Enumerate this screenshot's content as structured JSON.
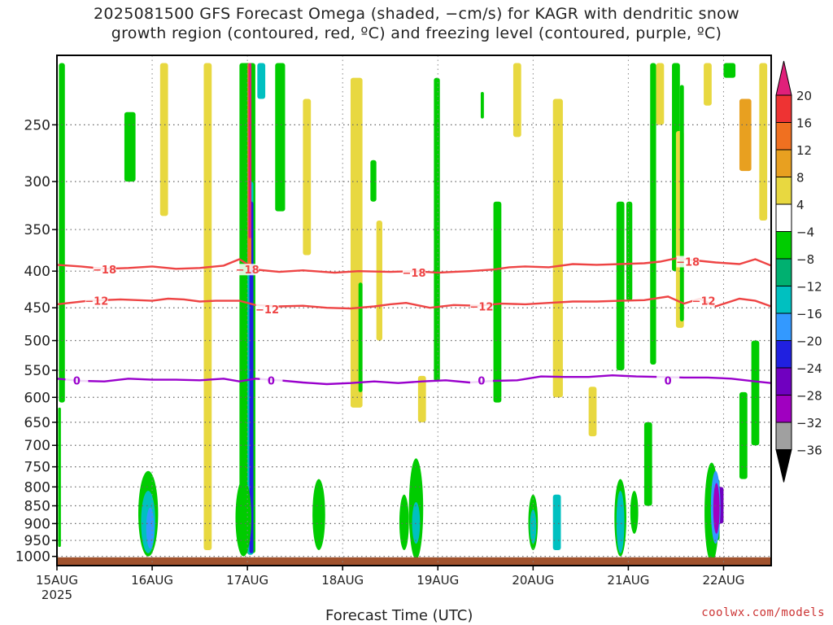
{
  "title_line1": "2025081500 GFS Forecast Omega (shaded, −cm/s) for KAGR with dendritic snow",
  "title_line2": "growth region (contoured, red, ºC) and freezing level (contoured, purple, ºC)",
  "credit": "coolwx.com/models",
  "colors": {
    "frame": "#000000",
    "grid": "#888888",
    "red_contour": "#ee4444",
    "purple_contour": "#9900cc",
    "ground": "#a0522d"
  },
  "chart_data": {
    "type": "heatmap",
    "xlabel": "Forecast Time (UTC)",
    "ylabel": "",
    "x_ticks": [
      "15AUG",
      "16AUG",
      "17AUG",
      "18AUG",
      "19AUG",
      "20AUG",
      "21AUG",
      "22AUG"
    ],
    "x_year": "2025",
    "xlim_hours": [
      0,
      180
    ],
    "y_ticks": [
      250,
      300,
      350,
      400,
      450,
      500,
      550,
      600,
      650,
      700,
      750,
      800,
      850,
      900,
      950,
      1000
    ],
    "ylim_hpa": [
      200,
      1030
    ],
    "y_scale": "log-pressure",
    "grid": true,
    "colorbar": {
      "labels": [
        20,
        16,
        12,
        8,
        4,
        -4,
        -8,
        -12,
        -16,
        -20,
        -24,
        -28,
        -32,
        -36
      ],
      "colors": [
        "#e0207a",
        "#ee3333",
        "#f07020",
        "#e8a020",
        "#e8d840",
        "#ffffff",
        "#00cc00",
        "#00b070",
        "#00c0c0",
        "#3399ff",
        "#2020e0",
        "#7000c0",
        "#a000c0",
        "#a0a0a0",
        "#000000"
      ]
    },
    "contours": [
      {
        "name": "-18",
        "color": "#ee4444",
        "labels": [
          {
            "x": 12,
            "y": 398
          },
          {
            "x": 48,
            "y": 398
          },
          {
            "x": 90,
            "y": 402
          },
          {
            "x": 159,
            "y": 388
          }
        ],
        "points": [
          [
            0,
            392
          ],
          [
            6,
            394
          ],
          [
            12,
            397
          ],
          [
            18,
            396
          ],
          [
            24,
            394
          ],
          [
            30,
            397
          ],
          [
            36,
            396
          ],
          [
            42,
            393
          ],
          [
            46,
            385
          ],
          [
            50,
            398
          ],
          [
            56,
            401
          ],
          [
            62,
            399
          ],
          [
            70,
            402
          ],
          [
            76,
            400
          ],
          [
            84,
            401
          ],
          [
            90,
            400
          ],
          [
            96,
            402
          ],
          [
            100,
            401
          ],
          [
            104,
            400
          ],
          [
            110,
            398
          ],
          [
            114,
            395
          ],
          [
            118,
            394
          ],
          [
            124,
            395
          ],
          [
            130,
            391
          ],
          [
            136,
            392
          ],
          [
            142,
            391
          ],
          [
            148,
            390
          ],
          [
            152,
            388
          ],
          [
            156,
            384
          ],
          [
            160,
            386
          ],
          [
            166,
            389
          ],
          [
            172,
            391
          ],
          [
            176,
            385
          ],
          [
            180,
            393
          ]
        ]
      },
      {
        "name": "-12",
        "color": "#ee4444",
        "labels": [
          {
            "x": 10,
            "y": 440
          },
          {
            "x": 53,
            "y": 452
          },
          {
            "x": 107,
            "y": 448
          },
          {
            "x": 163,
            "y": 440
          }
        ],
        "points": [
          [
            0,
            445
          ],
          [
            8,
            440
          ],
          [
            16,
            438
          ],
          [
            24,
            440
          ],
          [
            28,
            437
          ],
          [
            32,
            438
          ],
          [
            36,
            441
          ],
          [
            40,
            440
          ],
          [
            46,
            440
          ],
          [
            50,
            446
          ],
          [
            56,
            448
          ],
          [
            62,
            447
          ],
          [
            68,
            450
          ],
          [
            74,
            451
          ],
          [
            80,
            448
          ],
          [
            84,
            445
          ],
          [
            88,
            443
          ],
          [
            94,
            450
          ],
          [
            100,
            446
          ],
          [
            106,
            447
          ],
          [
            112,
            444
          ],
          [
            118,
            445
          ],
          [
            124,
            443
          ],
          [
            130,
            441
          ],
          [
            136,
            441
          ],
          [
            142,
            440
          ],
          [
            148,
            439
          ],
          [
            154,
            434
          ],
          [
            158,
            444
          ],
          [
            162,
            437
          ],
          [
            166,
            448
          ],
          [
            172,
            437
          ],
          [
            176,
            440
          ],
          [
            180,
            448
          ]
        ]
      },
      {
        "name": "0",
        "color": "#9900cc",
        "labels": [
          {
            "x": 5,
            "y": 568
          },
          {
            "x": 54,
            "y": 568
          },
          {
            "x": 107,
            "y": 568
          },
          {
            "x": 154,
            "y": 568
          }
        ],
        "points": [
          [
            0,
            565
          ],
          [
            6,
            569
          ],
          [
            12,
            570
          ],
          [
            18,
            565
          ],
          [
            24,
            567
          ],
          [
            30,
            567
          ],
          [
            36,
            568
          ],
          [
            42,
            565
          ],
          [
            46,
            570
          ],
          [
            50,
            565
          ],
          [
            56,
            568
          ],
          [
            62,
            572
          ],
          [
            68,
            575
          ],
          [
            74,
            573
          ],
          [
            80,
            570
          ],
          [
            86,
            573
          ],
          [
            92,
            570
          ],
          [
            98,
            568
          ],
          [
            104,
            572
          ],
          [
            110,
            569
          ],
          [
            116,
            568
          ],
          [
            122,
            561
          ],
          [
            128,
            562
          ],
          [
            134,
            562
          ],
          [
            140,
            559
          ],
          [
            146,
            561
          ],
          [
            152,
            562
          ],
          [
            158,
            563
          ],
          [
            164,
            563
          ],
          [
            170,
            565
          ],
          [
            176,
            570
          ],
          [
            180,
            573
          ]
        ]
      }
    ],
    "shaded_cells": [
      {
        "x": [
          0.5,
          2.0
        ],
        "y": [
          205,
          610
        ],
        "v": -6
      },
      {
        "x": [
          0.3,
          1.0
        ],
        "y": [
          620,
          970
        ],
        "v": -6
      },
      {
        "x": [
          17,
          19.8
        ],
        "y": [
          240,
          300
        ],
        "v": -6
      },
      {
        "x": [
          26,
          28
        ],
        "y": [
          205,
          335
        ],
        "v": 6
      },
      {
        "x": [
          37,
          39
        ],
        "y": [
          205,
          980
        ],
        "v": 6
      },
      {
        "x": [
          46,
          50
        ],
        "y": [
          205,
          990
        ],
        "v": -6
      },
      {
        "x": [
          48,
          49.5
        ],
        "y": [
          300,
          995
        ],
        "v": -14
      },
      {
        "x": [
          48.5,
          49.5
        ],
        "y": [
          320,
          990
        ],
        "v": -20
      },
      {
        "x": [
          48,
          49
        ],
        "y": [
          205,
          400
        ],
        "v": 14
      },
      {
        "x": [
          48.3,
          49.0
        ],
        "y": [
          205,
          360
        ],
        "v": 20
      },
      {
        "x": [
          50.5,
          52.5
        ],
        "y": [
          205,
          230
        ],
        "v": -14
      },
      {
        "x": [
          55,
          57.5
        ],
        "y": [
          205,
          330
        ],
        "v": -6
      },
      {
        "x": [
          62,
          64
        ],
        "y": [
          230,
          380
        ],
        "v": 6
      },
      {
        "x": [
          74,
          77
        ],
        "y": [
          215,
          620
        ],
        "v": 6
      },
      {
        "x": [
          76,
          77
        ],
        "y": [
          415,
          590
        ],
        "v": -6
      },
      {
        "x": [
          79,
          80.5
        ],
        "y": [
          280,
          320
        ],
        "v": -6
      },
      {
        "x": [
          80.5,
          82
        ],
        "y": [
          340,
          500
        ],
        "v": 6
      },
      {
        "x": [
          91,
          93
        ],
        "y": [
          560,
          650
        ],
        "v": 6
      },
      {
        "x": [
          95,
          96.5
        ],
        "y": [
          215,
          570
        ],
        "v": -6
      },
      {
        "x": [
          106.8,
          107.6
        ],
        "y": [
          225,
          245
        ],
        "v": -6
      },
      {
        "x": [
          110,
          112
        ],
        "y": [
          320,
          610
        ],
        "v": -6
      },
      {
        "x": [
          115,
          117
        ],
        "y": [
          205,
          260
        ],
        "v": 6
      },
      {
        "x": [
          125,
          127.5
        ],
        "y": [
          230,
          600
        ],
        "v": 6
      },
      {
        "x": [
          125,
          127
        ],
        "y": [
          820,
          980
        ],
        "v": -14
      },
      {
        "x": [
          134,
          136
        ],
        "y": [
          580,
          680
        ],
        "v": 6
      },
      {
        "x": [
          141,
          143
        ],
        "y": [
          320,
          550
        ],
        "v": -6
      },
      {
        "x": [
          143.5,
          145
        ],
        "y": [
          320,
          440
        ],
        "v": -6
      },
      {
        "x": [
          148,
          150
        ],
        "y": [
          650,
          850
        ],
        "v": -6
      },
      {
        "x": [
          149.5,
          151
        ],
        "y": [
          205,
          540
        ],
        "v": -6
      },
      {
        "x": [
          151,
          153
        ],
        "y": [
          205,
          250
        ],
        "v": 6
      },
      {
        "x": [
          155,
          157
        ],
        "y": [
          205,
          400
        ],
        "v": -6
      },
      {
        "x": [
          156,
          158
        ],
        "y": [
          255,
          480
        ],
        "v": 6
      },
      {
        "x": [
          157,
          158
        ],
        "y": [
          220,
          470
        ],
        "v": -6
      },
      {
        "x": [
          163,
          165
        ],
        "y": [
          205,
          235
        ],
        "v": 6
      },
      {
        "x": [
          165,
          167
        ],
        "y": [
          780,
          950
        ],
        "v": -6
      },
      {
        "x": [
          166,
          168
        ],
        "y": [
          800,
          900
        ],
        "v": -24
      },
      {
        "x": [
          168,
          171
        ],
        "y": [
          205,
          215
        ],
        "v": -6
      },
      {
        "x": [
          172,
          175
        ],
        "y": [
          230,
          290
        ],
        "v": 10
      },
      {
        "x": [
          172,
          174
        ],
        "y": [
          590,
          780
        ],
        "v": -6
      },
      {
        "x": [
          175,
          177
        ],
        "y": [
          500,
          700
        ],
        "v": -6
      },
      {
        "x": [
          177,
          179
        ],
        "y": [
          205,
          340
        ],
        "v": 6
      }
    ],
    "blobs": [
      {
        "cx": 23,
        "cy": 880,
        "rx": 2.5,
        "ry": 120,
        "v": -6
      },
      {
        "cx": 23,
        "cy": 900,
        "rx": 1.8,
        "ry": 90,
        "v": -12
      },
      {
        "cx": 23.5,
        "cy": 915,
        "rx": 1.0,
        "ry": 60,
        "v": -16
      },
      {
        "cx": 47,
        "cy": 890,
        "rx": 2.0,
        "ry": 110,
        "v": -6
      },
      {
        "cx": 66,
        "cy": 880,
        "rx": 1.6,
        "ry": 100,
        "v": -6
      },
      {
        "cx": 87.5,
        "cy": 900,
        "rx": 1.2,
        "ry": 80,
        "v": -6
      },
      {
        "cx": 90.5,
        "cy": 870,
        "rx": 1.8,
        "ry": 140,
        "v": -6
      },
      {
        "cx": 90.5,
        "cy": 900,
        "rx": 1.0,
        "ry": 60,
        "v": -12
      },
      {
        "cx": 120,
        "cy": 900,
        "rx": 1.2,
        "ry": 80,
        "v": -6
      },
      {
        "cx": 120,
        "cy": 910,
        "rx": 0.8,
        "ry": 50,
        "v": -14
      },
      {
        "cx": 142,
        "cy": 890,
        "rx": 1.5,
        "ry": 110,
        "v": -6
      },
      {
        "cx": 142,
        "cy": 900,
        "rx": 1.0,
        "ry": 90,
        "v": -12
      },
      {
        "cx": 145.5,
        "cy": 870,
        "rx": 1.0,
        "ry": 60,
        "v": -6
      },
      {
        "cx": 165,
        "cy": 880,
        "rx": 1.8,
        "ry": 140,
        "v": -6
      },
      {
        "cx": 166,
        "cy": 860,
        "rx": 1.2,
        "ry": 100,
        "v": -16
      },
      {
        "cx": 166.2,
        "cy": 860,
        "rx": 0.8,
        "ry": 70,
        "v": -28
      }
    ]
  }
}
